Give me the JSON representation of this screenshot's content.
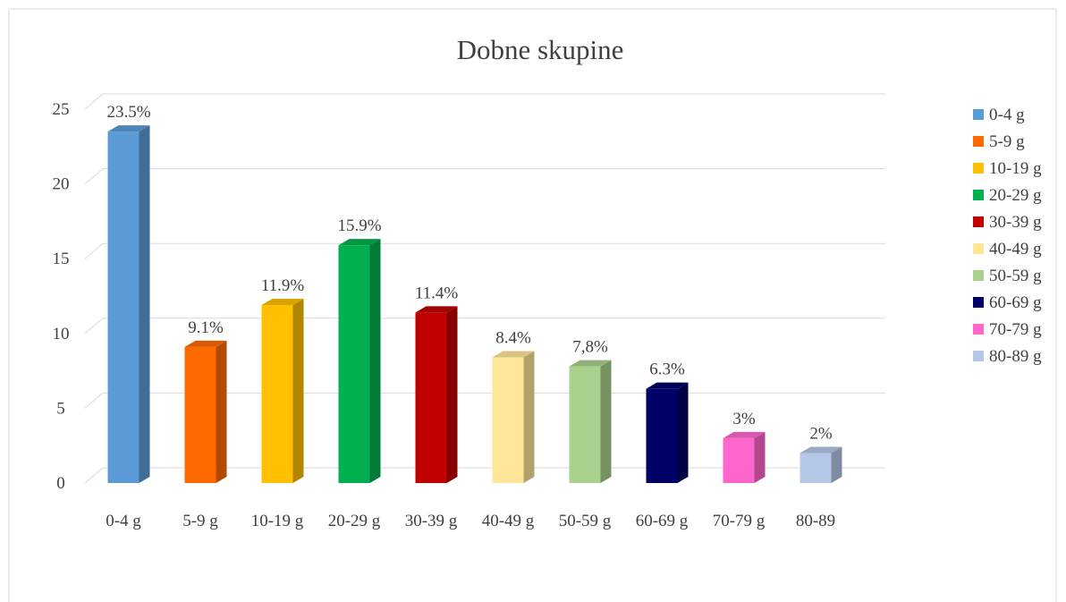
{
  "chart_data": {
    "type": "bar3d",
    "title": "Dobne skupine",
    "categories": [
      "0-4 g",
      "5-9 g",
      "10-19 g",
      "20-29 g",
      "30-39 g",
      "40-49 g",
      "50-59 g",
      "60-69 g",
      "70-79 g",
      "80-89"
    ],
    "values": [
      23.5,
      9.1,
      11.9,
      15.9,
      11.4,
      8.4,
      7.8,
      6.3,
      3,
      2
    ],
    "value_labels": [
      "23.5%",
      "9.1%",
      "11.9%",
      "15.9%",
      "11.4%",
      "8.4%",
      "7,8%",
      "6.3%",
      "3%",
      "2%"
    ],
    "colors": [
      "#5b9bd5",
      "#ff6a00",
      "#ffc000",
      "#00b050",
      "#c00000",
      "#ffe699",
      "#a9d18e",
      "#000066",
      "#ff66cc",
      "#b4c7e7"
    ],
    "legend": [
      "0-4 g",
      "5-9 g",
      "10-19 g",
      "20-29 g",
      "30-39 g",
      "40-49 g",
      "50-59 g",
      "60-69 g",
      "70-79 g",
      "80-89 g"
    ],
    "ylim": [
      0,
      25
    ],
    "yticks": [
      0,
      5,
      10,
      15,
      20,
      25
    ],
    "grid": true
  }
}
